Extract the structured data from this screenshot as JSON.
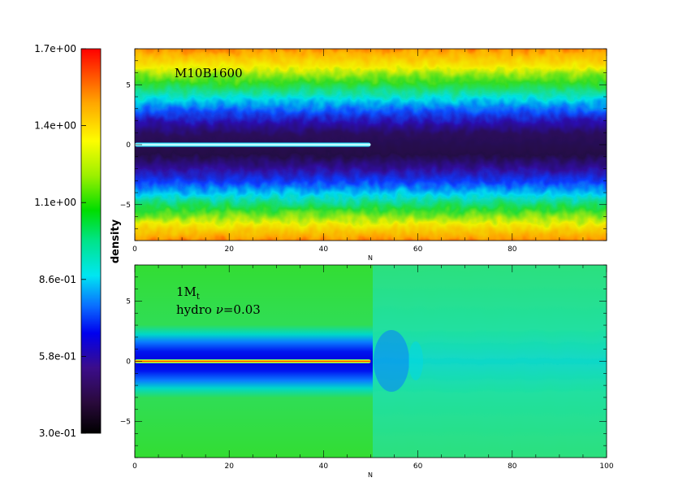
{
  "colorbar": {
    "label": "density",
    "tick_labels": [
      "1.7e+00",
      "1.4e+00",
      "1.1e+00",
      "8.6e-01",
      "5.8e-01",
      "3.0e-01"
    ],
    "range": [
      0.3,
      1.7
    ]
  },
  "chart_data": [
    {
      "type": "heatmap",
      "panel": "top",
      "title": "M10B1600",
      "xlabel": "N",
      "ylabel": "",
      "xlim": [
        0,
        100
      ],
      "ylim": [
        -8,
        8
      ],
      "x_ticks": [
        0,
        20,
        40,
        60,
        80
      ],
      "y_ticks": [
        -5,
        0,
        5
      ],
      "x_tick_labels": [
        "0",
        "20",
        "40",
        "60",
        "80"
      ],
      "y_tick_labels": [
        "−5",
        "0",
        "5"
      ],
      "feature": {
        "filament_end_x": 50,
        "filament_y": 0
      },
      "density_profile_y": [
        -8,
        -6,
        -4,
        -2,
        0,
        2,
        4,
        6,
        8
      ],
      "density_profile_values": [
        1.6,
        1.2,
        0.85,
        0.5,
        0.38,
        0.5,
        0.85,
        1.2,
        1.6
      ]
    },
    {
      "type": "heatmap",
      "panel": "bottom",
      "title": "1M",
      "title_sub": "t",
      "subtitle_prefix": "hydro ",
      "subtitle_nu": "ν",
      "subtitle_suffix": "=0.03",
      "xlabel": "N",
      "ylabel": "",
      "xlim": [
        0,
        100
      ],
      "ylim": [
        -8,
        8
      ],
      "x_ticks": [
        0,
        20,
        40,
        60,
        80,
        100
      ],
      "y_ticks": [
        -5,
        0,
        5
      ],
      "x_tick_labels": [
        "0",
        "20",
        "40",
        "60",
        "80",
        "100"
      ],
      "y_tick_labels": [
        "−5",
        "0",
        "5"
      ],
      "feature": {
        "filament_end_x": 50,
        "filament_y": 0
      },
      "density_profile_y": [
        -8,
        -4,
        -2,
        0,
        2,
        4,
        8
      ],
      "density_profile_values": [
        1.05,
        1.05,
        0.85,
        0.6,
        0.85,
        1.05,
        1.05
      ]
    }
  ]
}
